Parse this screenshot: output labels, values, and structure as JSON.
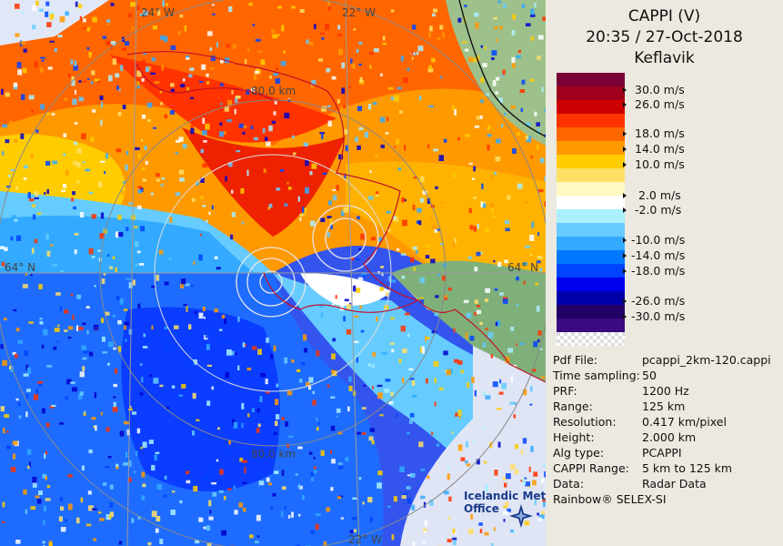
{
  "header": {
    "title": "CAPPI (V)",
    "datetime": "20:35 / 27-Oct-2018",
    "location": "Keflavik"
  },
  "legend": {
    "colors": [
      "#7a0036",
      "#a0001c",
      "#cc0000",
      "#ff3300",
      "#ff6600",
      "#ff9900",
      "#ffcc00",
      "#ffe066",
      "#fff8c0",
      "#ffffff",
      "#aaf0ff",
      "#66ccff",
      "#33aaff",
      "#0077ff",
      "#0044ff",
      "#0000ee",
      "#0000aa",
      "#220066",
      "#3c0a80"
    ],
    "labels": [
      "30.0 m/s",
      "26.0 m/s",
      "18.0 m/s",
      "14.0 m/s",
      "10.0 m/s",
      "2.0 m/s",
      "-2.0 m/s",
      "-10.0 m/s",
      "-14.0 m/s",
      "-18.0 m/s",
      "-26.0 m/s",
      "-30.0 m/s"
    ]
  },
  "info": [
    {
      "key": "Pdf File:",
      "value": "pcappi_2km-120.cappi"
    },
    {
      "key": "Time sampling:",
      "value": "50"
    },
    {
      "key": "PRF:",
      "value": "1200 Hz"
    },
    {
      "key": "Range:",
      "value": "125 km"
    },
    {
      "key": "Resolution:",
      "value": "0.417 km/pixel"
    },
    {
      "key": "Height:",
      "value": "2.000 km"
    },
    {
      "key": "Alg type:",
      "value": "PCAPPI"
    },
    {
      "key": "CAPPI Range:",
      "value": "5 km to 125 km"
    },
    {
      "key": "Data:",
      "value": "Radar Data"
    }
  ],
  "credit": "Rainbow® SELEX-SI",
  "map": {
    "lon_top_left": "24° W",
    "lon_top_right": "22° W",
    "lon_bottom": "22° W",
    "lat_left": "64° N",
    "lat_right": "64° N",
    "range_top": "80.0 km",
    "range_bottom": "80.0 km"
  },
  "logo": {
    "line1": "Icelandic Met",
    "line2": "Office"
  }
}
